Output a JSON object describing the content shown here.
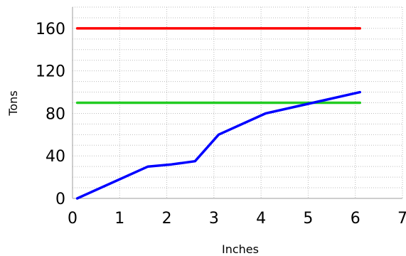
{
  "chart_data": {
    "type": "line",
    "title": "",
    "xlabel": "Inches",
    "ylabel": "Tons",
    "xlim": [
      0,
      7
    ],
    "ylim": [
      0,
      180
    ],
    "x_ticks": [
      "0",
      "1",
      "2",
      "3",
      "4",
      "5",
      "6",
      "7"
    ],
    "y_ticks": [
      "0",
      "40",
      "80",
      "120",
      "160"
    ],
    "grid": true,
    "legend": "none",
    "series": [
      {
        "color": "#ff0000",
        "points": [
          [
            0.1,
            160
          ],
          [
            6.1,
            160
          ]
        ]
      },
      {
        "color": "#22cc22",
        "points": [
          [
            0.1,
            90
          ],
          [
            6.1,
            90
          ]
        ]
      },
      {
        "color": "#0000ff",
        "points": [
          [
            0.1,
            0
          ],
          [
            1.6,
            30
          ],
          [
            2.1,
            32
          ],
          [
            2.6,
            35
          ],
          [
            3.1,
            60
          ],
          [
            4.1,
            80
          ],
          [
            5.1,
            90
          ],
          [
            6.1,
            100
          ]
        ]
      }
    ]
  }
}
